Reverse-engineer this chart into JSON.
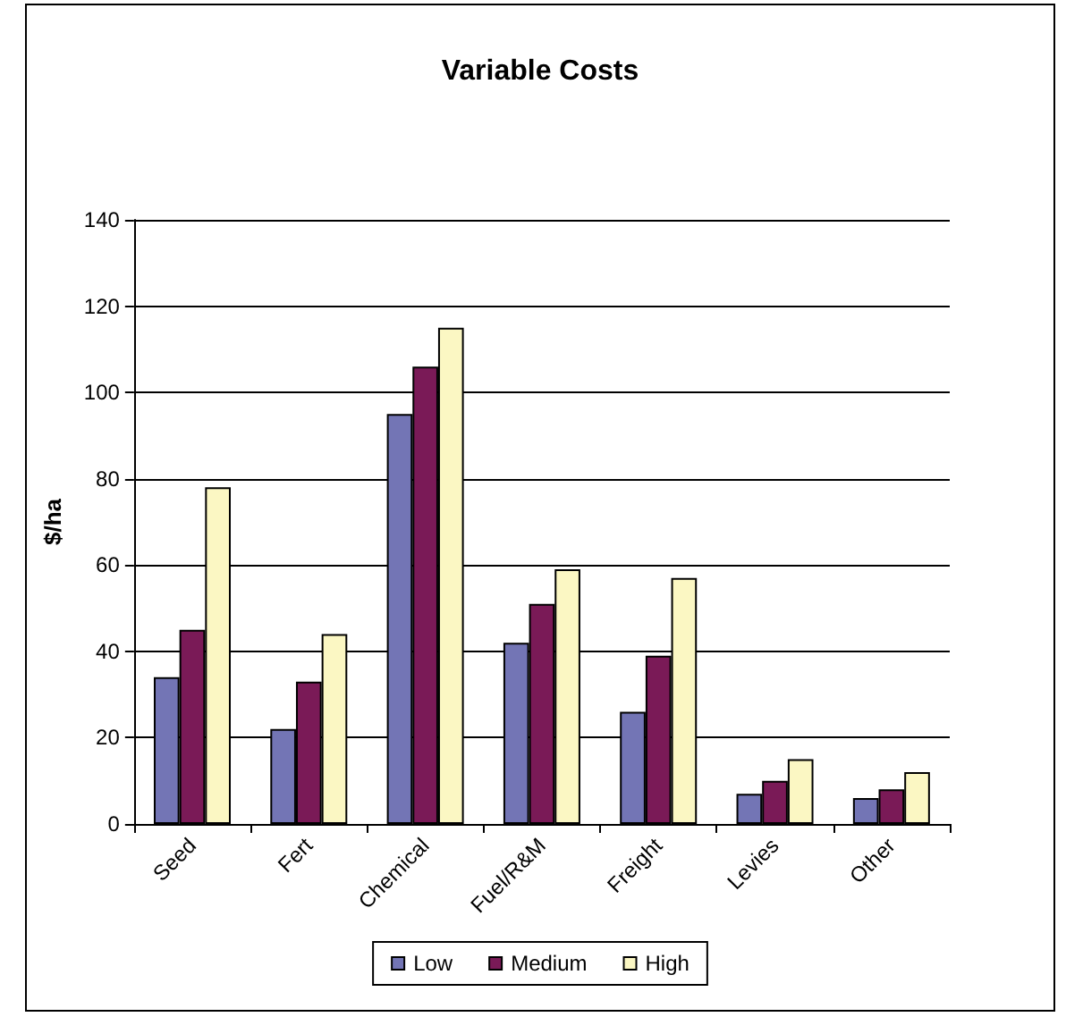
{
  "chart_data": {
    "type": "bar",
    "title": "Variable Costs",
    "ylabel": "$/ha",
    "categories": [
      "Seed",
      "Fert",
      "Chemical",
      "Fuel/R&M",
      "Freight",
      "Levies",
      "Other"
    ],
    "series": [
      {
        "name": "Low",
        "color": "#7375b5",
        "values": [
          34,
          22,
          95,
          42,
          26,
          7,
          6
        ]
      },
      {
        "name": "Medium",
        "color": "#7a1a57",
        "values": [
          45,
          33,
          106,
          51,
          39,
          10,
          8
        ]
      },
      {
        "name": "High",
        "color": "#fbf7c3",
        "values": [
          78,
          44,
          115,
          59,
          57,
          15,
          12
        ]
      }
    ],
    "ylim": [
      0,
      140
    ],
    "yticks": [
      0,
      20,
      40,
      60,
      80,
      100,
      120,
      140
    ],
    "grid": "y",
    "legend": "bottom"
  }
}
